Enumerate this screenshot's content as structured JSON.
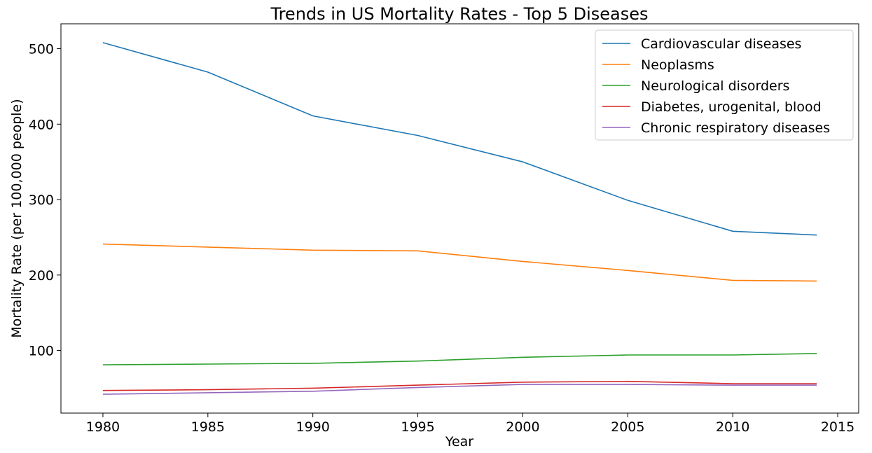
{
  "chart_data": {
    "type": "line",
    "title": "Trends in US Mortality Rates - Top 5 Diseases",
    "xlabel": "Year",
    "ylabel": "Mortality Rate (per 100,000 people)",
    "xlim": [
      1978,
      2016
    ],
    "ylim": [
      17,
      533
    ],
    "xticks": [
      1980,
      1985,
      1990,
      1995,
      2000,
      2005,
      2010,
      2015
    ],
    "yticks": [
      100,
      200,
      300,
      400,
      500
    ],
    "grid": false,
    "legend_position": "top-right",
    "x": [
      1980,
      1985,
      1990,
      1995,
      2000,
      2005,
      2010,
      2014
    ],
    "series": [
      {
        "name": "Cardiovascular diseases",
        "color": "#1f77b4",
        "values": [
          508,
          469,
          411,
          385,
          350,
          299,
          258,
          253
        ]
      },
      {
        "name": "Neoplasms",
        "color": "#ff7f0e",
        "values": [
          241,
          237,
          233,
          232,
          218,
          206,
          193,
          192
        ]
      },
      {
        "name": "Neurological disorders",
        "color": "#2ca02c",
        "values": [
          81,
          82,
          83,
          86,
          91,
          94,
          94,
          96
        ]
      },
      {
        "name": "Diabetes, urogenital, blood",
        "color": "#d62728",
        "values": [
          47,
          48,
          50,
          54,
          58,
          59,
          56,
          56
        ]
      },
      {
        "name": "Chronic respiratory diseases",
        "color": "#9467bd",
        "values": [
          42,
          44,
          46,
          51,
          55,
          55,
          54,
          54
        ]
      }
    ]
  }
}
